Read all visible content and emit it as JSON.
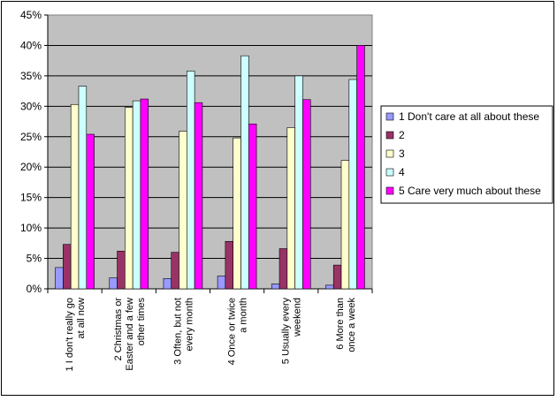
{
  "chart_data": {
    "type": "bar",
    "title": "",
    "xlabel": "",
    "ylabel": "",
    "ylim": [
      0,
      45
    ],
    "y_ticks": [
      "0%",
      "5%",
      "10%",
      "15%",
      "20%",
      "25%",
      "30%",
      "35%",
      "40%",
      "45%"
    ],
    "grid": true,
    "legend_position": "right",
    "categories": [
      [
        "1 I don't really go",
        "at all now"
      ],
      [
        "2 Christmas or",
        "Easter and a few",
        "other times"
      ],
      [
        "3 Often, but not",
        "every month"
      ],
      [
        "4 Once or twice",
        "a month"
      ],
      [
        "5 Usually every",
        "weekend"
      ],
      [
        "6 More than",
        "once a week"
      ]
    ],
    "series": [
      {
        "name": "1 Don't care at all about these",
        "color": "#9999ff",
        "values": [
          3.5,
          1.8,
          1.7,
          2.1,
          0.8,
          0.6
        ]
      },
      {
        "name": "2",
        "color": "#993366",
        "values": [
          7.3,
          6.2,
          6.0,
          7.8,
          6.6,
          3.9
        ]
      },
      {
        "name": "3",
        "color": "#ffffcc",
        "values": [
          30.3,
          29.8,
          25.9,
          24.8,
          26.5,
          21.1
        ]
      },
      {
        "name": "4",
        "color": "#ccffff",
        "values": [
          33.3,
          30.9,
          35.8,
          38.3,
          35.0,
          34.4
        ]
      },
      {
        "name": "5 Care very much about these",
        "color": "#ff00ff",
        "values": [
          25.4,
          31.2,
          30.6,
          27.1,
          31.1,
          40.0
        ]
      }
    ],
    "plot_background": "#c0c0c0"
  }
}
